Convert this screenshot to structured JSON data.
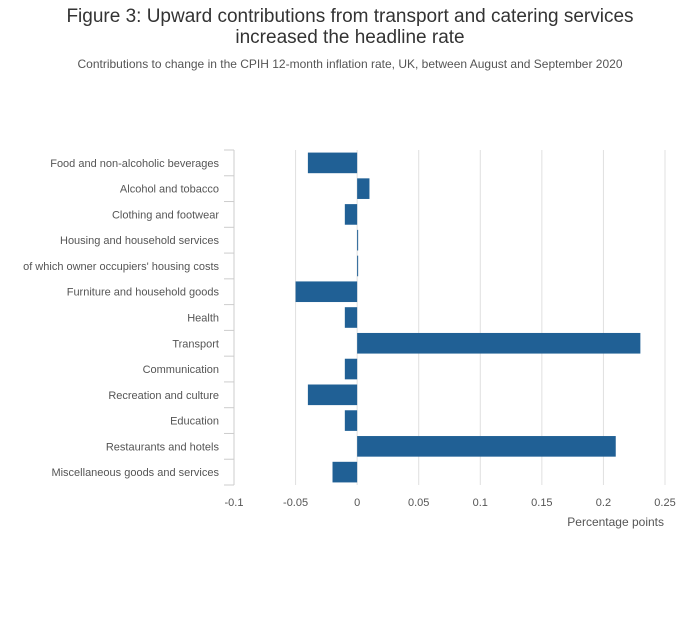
{
  "chart_data": {
    "type": "bar",
    "orientation": "horizontal",
    "title_lines": [
      "Figure 3: Upward contributions from transport and catering services",
      "increased the headline rate"
    ],
    "subtitle": "Contributions to change in the CPIH 12-month inflation rate, UK, between August and September 2020",
    "xlabel": "Percentage points",
    "ylabel": "",
    "xlim": [
      -0.1,
      0.25
    ],
    "xticks": [
      -0.1,
      -0.05,
      0,
      0.05,
      0.1,
      0.15,
      0.2,
      0.25
    ],
    "xtick_labels": [
      "-0.1",
      "-0.05",
      "0",
      "0.05",
      "0.1",
      "0.15",
      "0.2",
      "0.25"
    ],
    "categories": [
      "Food and non-alcoholic beverages",
      "Alcohol and tobacco",
      "Clothing and footwear",
      "Housing and household services",
      "of which owner occupiers' housing costs",
      "Furniture and household goods",
      "Health",
      "Transport",
      "Communication",
      "Recreation and culture",
      "Education",
      "Restaurants and hotels",
      "Miscellaneous goods and services"
    ],
    "values": [
      -0.04,
      0.01,
      -0.01,
      0.0,
      0.0,
      -0.05,
      -0.01,
      0.23,
      -0.01,
      -0.04,
      -0.01,
      0.21,
      -0.02
    ],
    "bar_color": "#206095",
    "grid": true
  }
}
